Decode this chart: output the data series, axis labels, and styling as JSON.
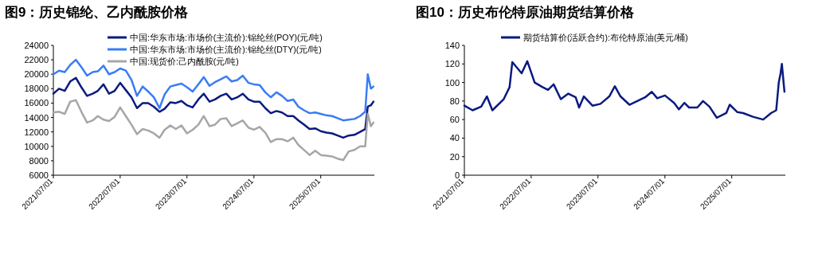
{
  "chart_data": [
    {
      "type": "line",
      "title": "图9：历史锦纶、乙内酰胺价格",
      "xlim": [
        "2021-07-01",
        "2026-04-20"
      ],
      "xticks": [
        {
          "value": "2021-07-01",
          "label": "2021/07/01"
        },
        {
          "value": "2022-07-01",
          "label": "2022/07/01"
        },
        {
          "value": "2023-07-01",
          "label": "2023/07/01"
        },
        {
          "value": "2024-07-01",
          "label": "2024/07/01"
        },
        {
          "value": "2025-07-01",
          "label": "2025/07/01"
        }
      ],
      "ylim": [
        6000,
        24000
      ],
      "yticks": [
        6000,
        8000,
        10000,
        12000,
        14000,
        16000,
        18000,
        20000,
        22000,
        24000
      ],
      "grid": false,
      "legend": "top",
      "marker": "none",
      "line_style": "solid",
      "x": [
        "2021-07-01",
        "2021-08-01",
        "2021-09-01",
        "2021-10-01",
        "2021-11-01",
        "2021-12-01",
        "2022-01-01",
        "2022-02-01",
        "2022-03-01",
        "2022-04-01",
        "2022-05-01",
        "2022-06-01",
        "2022-07-01",
        "2022-08-01",
        "2022-09-01",
        "2022-10-01",
        "2022-11-01",
        "2022-12-01",
        "2023-01-01",
        "2023-02-01",
        "2023-03-01",
        "2023-04-01",
        "2023-05-01",
        "2023-06-01",
        "2023-07-01",
        "2023-08-01",
        "2023-09-01",
        "2023-10-01",
        "2023-11-01",
        "2023-12-01",
        "2024-01-01",
        "2024-02-01",
        "2024-03-01",
        "2024-04-01",
        "2024-05-01",
        "2024-06-01",
        "2024-07-01",
        "2024-08-01",
        "2024-09-01",
        "2024-10-01",
        "2024-11-01",
        "2024-12-01",
        "2025-01-01",
        "2025-02-01",
        "2025-03-01",
        "2025-04-01",
        "2025-05-01",
        "2025-06-01",
        "2025-07-01",
        "2025-08-01",
        "2025-09-01",
        "2025-10-01",
        "2025-11-01",
        "2025-12-01",
        "2026-01-01",
        "2026-02-01",
        "2026-03-01",
        "2026-03-15",
        "2026-04-01",
        "2026-04-15"
      ],
      "series": [
        {
          "name": "中国:华东市场:市场价(主流价):锦纶丝(POY)(元/吨)",
          "color": "#0a1a80",
          "values": [
            17300,
            18000,
            17700,
            19000,
            19500,
            18200,
            17000,
            17300,
            17700,
            18600,
            17300,
            17700,
            18800,
            17800,
            16800,
            15300,
            16000,
            16000,
            15500,
            14800,
            15200,
            16100,
            16000,
            16300,
            15700,
            15400,
            16500,
            17300,
            16200,
            16500,
            17000,
            17300,
            16500,
            16800,
            17300,
            16500,
            16200,
            16200,
            15300,
            14600,
            14900,
            14700,
            14200,
            14200,
            13600,
            13000,
            12400,
            12500,
            12100,
            11900,
            11800,
            11500,
            11200,
            11500,
            11600,
            12000,
            12400,
            15500,
            15700,
            16200
          ]
        },
        {
          "name": "中国:华东市场:市场价(主流价):锦纶丝(DTY)(元/吨)",
          "color": "#3a7cf5",
          "values": [
            20000,
            20500,
            20300,
            21300,
            22000,
            21000,
            19800,
            20300,
            20400,
            21200,
            20000,
            20300,
            20800,
            20500,
            19200,
            17000,
            18300,
            17600,
            16800,
            15300,
            17200,
            18300,
            18500,
            18700,
            18200,
            17600,
            18600,
            19600,
            18400,
            18900,
            19300,
            19700,
            19000,
            19200,
            19800,
            18800,
            18600,
            18500,
            17500,
            16800,
            17500,
            17000,
            16300,
            16500,
            15500,
            15000,
            14600,
            14700,
            14500,
            14300,
            14200,
            13900,
            13600,
            13700,
            13800,
            14200,
            14800,
            20000,
            18000,
            18300
          ]
        },
        {
          "name": "中国:现货价:己内酰胺(元/吨)",
          "color": "#a6a6a6",
          "values": [
            14700,
            14800,
            14500,
            16200,
            16400,
            14800,
            13300,
            13600,
            14200,
            13700,
            13500,
            14100,
            15400,
            14200,
            13000,
            11700,
            12400,
            12200,
            11800,
            11200,
            12300,
            12900,
            12400,
            12900,
            11800,
            12300,
            13000,
            14200,
            12800,
            13000,
            13800,
            13900,
            12800,
            13200,
            13600,
            12600,
            12300,
            12700,
            11900,
            10600,
            11000,
            11000,
            10700,
            11200,
            10200,
            9500,
            8800,
            9400,
            8800,
            8700,
            8600,
            8300,
            8100,
            9300,
            9500,
            10000,
            10000,
            14500,
            12800,
            13300
          ]
        }
      ]
    },
    {
      "type": "line",
      "title": "图10：历史布伦特原油期货结算价格",
      "xlim": [
        "2021-07-01",
        "2026-04-20"
      ],
      "xticks": [
        {
          "value": "2021-07-01",
          "label": "2021/07/01"
        },
        {
          "value": "2022-07-01",
          "label": "2022/07/01"
        },
        {
          "value": "2023-07-01",
          "label": "2023/07/01"
        },
        {
          "value": "2024-07-01",
          "label": "2024/07/01"
        },
        {
          "value": "2025-07-01",
          "label": "2025/07/01"
        }
      ],
      "ylim": [
        0,
        140
      ],
      "yticks": [
        0,
        20,
        40,
        60,
        80,
        100,
        120,
        140
      ],
      "grid": false,
      "legend": "top",
      "marker": "none",
      "line_style": "solid",
      "x": [
        "2021-07-01",
        "2021-08-15",
        "2021-10-01",
        "2021-11-01",
        "2021-12-01",
        "2022-02-01",
        "2022-03-05",
        "2022-03-20",
        "2022-05-10",
        "2022-06-10",
        "2022-07-20",
        "2022-09-01",
        "2022-10-01",
        "2022-11-01",
        "2022-12-10",
        "2023-01-20",
        "2023-03-01",
        "2023-03-20",
        "2023-04-15",
        "2023-06-01",
        "2023-07-15",
        "2023-09-01",
        "2023-10-01",
        "2023-11-01",
        "2023-12-20",
        "2024-02-01",
        "2024-03-15",
        "2024-04-20",
        "2024-05-20",
        "2024-07-01",
        "2024-08-20",
        "2024-09-15",
        "2024-10-15",
        "2024-11-10",
        "2024-12-25",
        "2025-01-25",
        "2025-03-01",
        "2025-04-10",
        "2025-06-01",
        "2025-06-20",
        "2025-08-01",
        "2025-09-01",
        "2025-10-25",
        "2025-12-20",
        "2026-02-01",
        "2026-03-01",
        "2026-03-15",
        "2026-03-25",
        "2026-04-01",
        "2026-04-15"
      ],
      "series": [
        {
          "name": "期货结算价(活跃合约):布伦特原油(美元/桶)",
          "color": "#0a1a80",
          "values": [
            75,
            70,
            74,
            85,
            70,
            82,
            95,
            122,
            110,
            123,
            100,
            95,
            92,
            98,
            82,
            88,
            84,
            73,
            85,
            75,
            77,
            85,
            96,
            85,
            76,
            80,
            84,
            90,
            83,
            86,
            78,
            71,
            78,
            73,
            73,
            80,
            74,
            62,
            67,
            76,
            68,
            67,
            63,
            60,
            67,
            70,
            100,
            110,
            120,
            90
          ]
        }
      ]
    }
  ]
}
